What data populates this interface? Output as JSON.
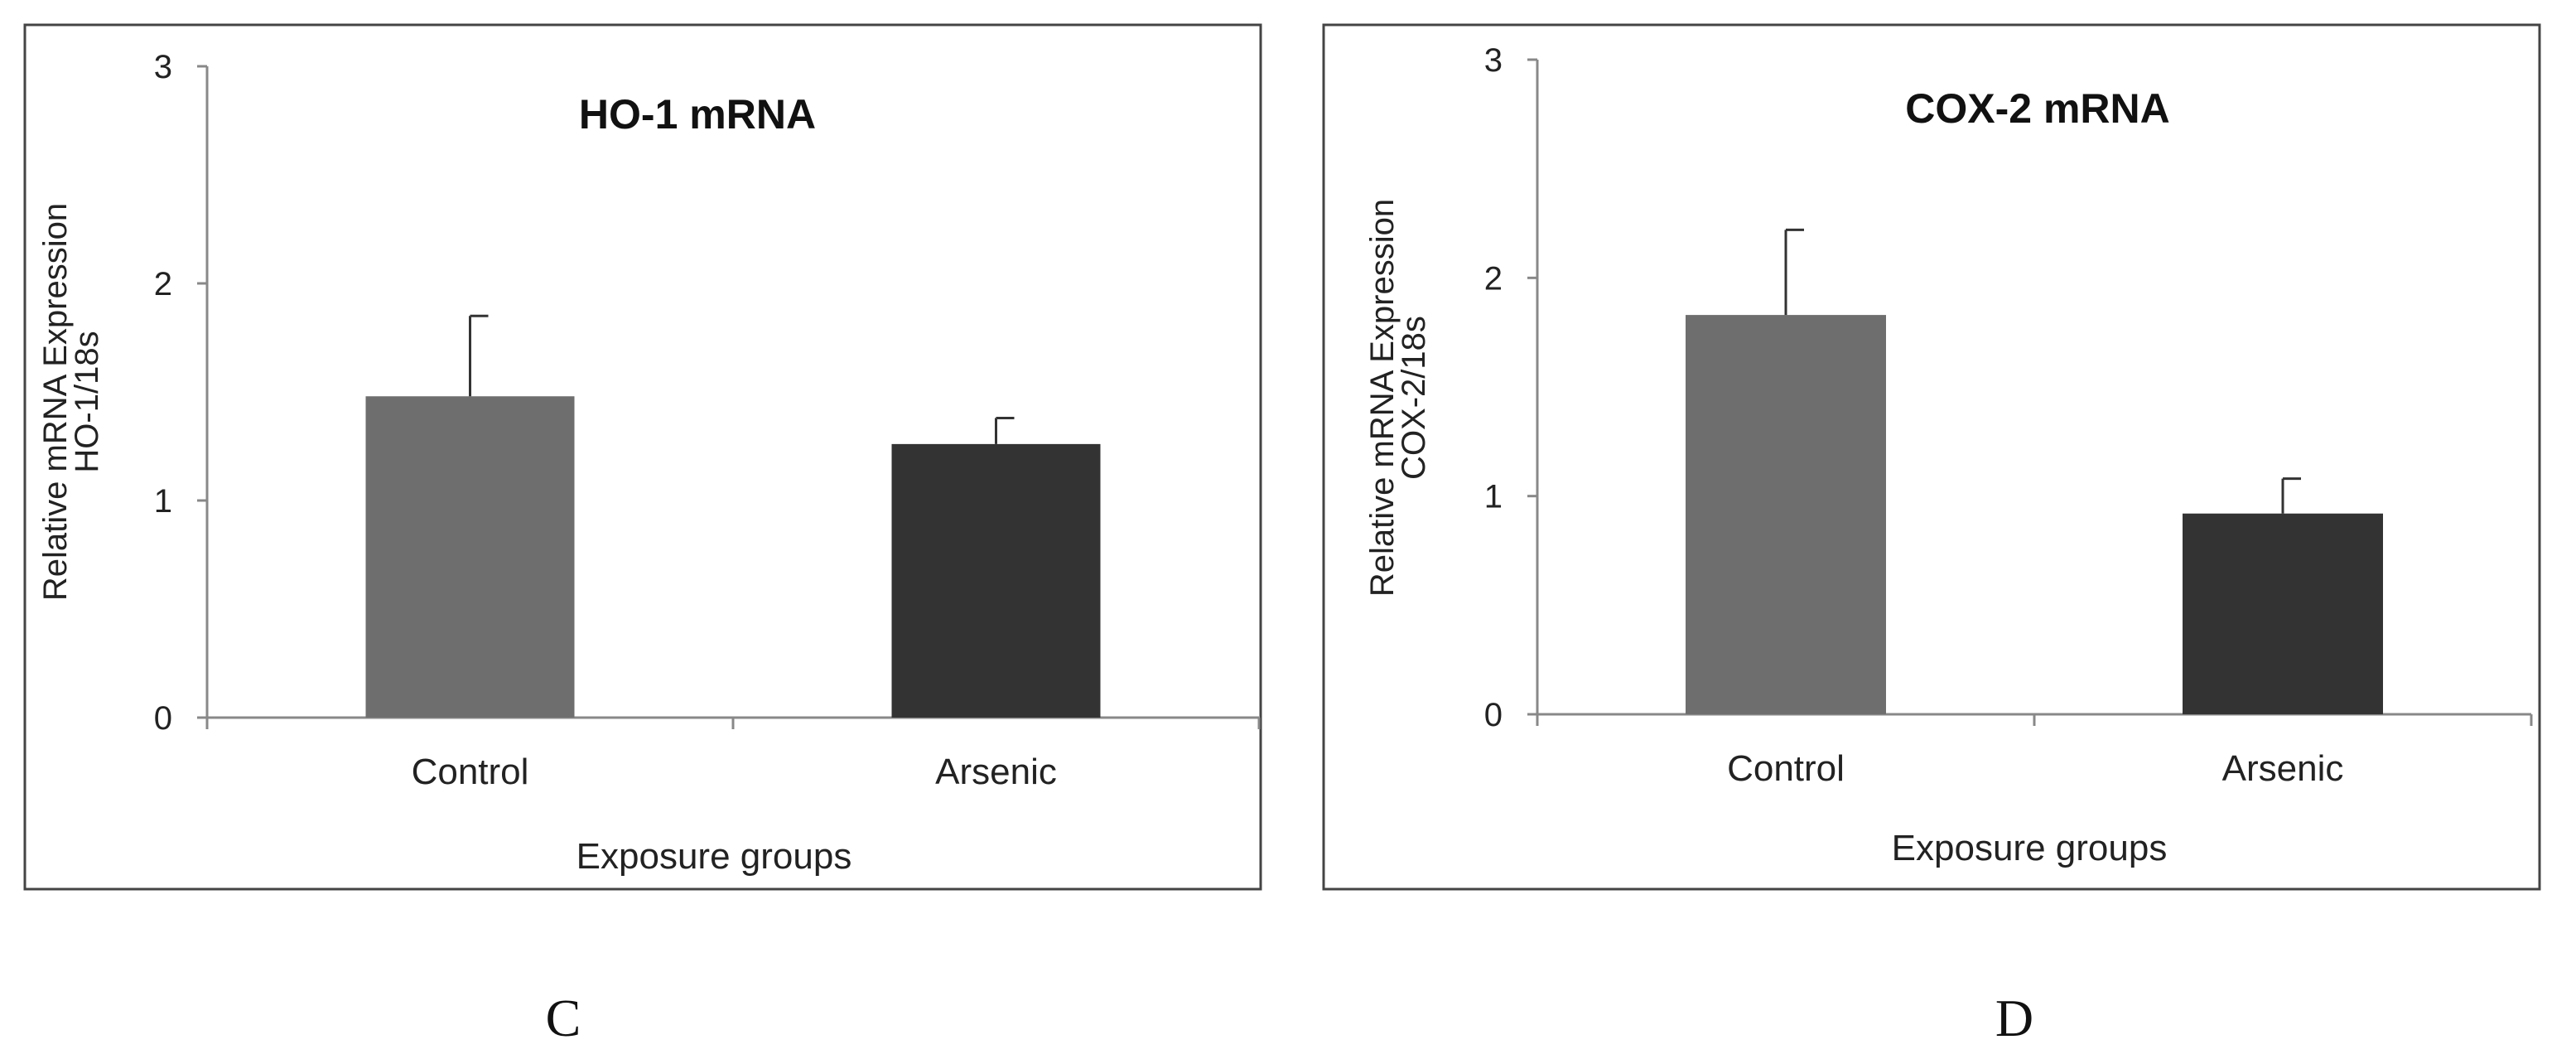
{
  "chart_data": [
    {
      "type": "bar",
      "title": "HO-1 mRNA",
      "ylabel_line1": "Relative mRNA Expression",
      "ylabel_line2": "HO-1/18s",
      "xlabel": "Exposure groups",
      "categories": [
        "Control",
        "Arsenic"
      ],
      "values": [
        1.48,
        1.26
      ],
      "errors": [
        0.37,
        0.12
      ],
      "bar_colors": [
        "#6e6e6e",
        "#333333"
      ],
      "ylim": [
        0,
        3
      ],
      "yticks": [
        "0",
        "1",
        "2",
        "3"
      ],
      "panel_label": "C"
    },
    {
      "type": "bar",
      "title": "COX-2 mRNA",
      "ylabel_line1": "Relative mRNA Expression",
      "ylabel_line2": "COX-2/18s",
      "xlabel": "Exposure groups",
      "categories": [
        "Control",
        "Arsenic"
      ],
      "values": [
        1.83,
        0.92
      ],
      "errors": [
        0.39,
        0.16
      ],
      "bar_colors": [
        "#6e6e6e",
        "#333333"
      ],
      "ylim": [
        0,
        3
      ],
      "yticks": [
        "0",
        "1",
        "2",
        "3"
      ],
      "panel_label": "D"
    }
  ]
}
